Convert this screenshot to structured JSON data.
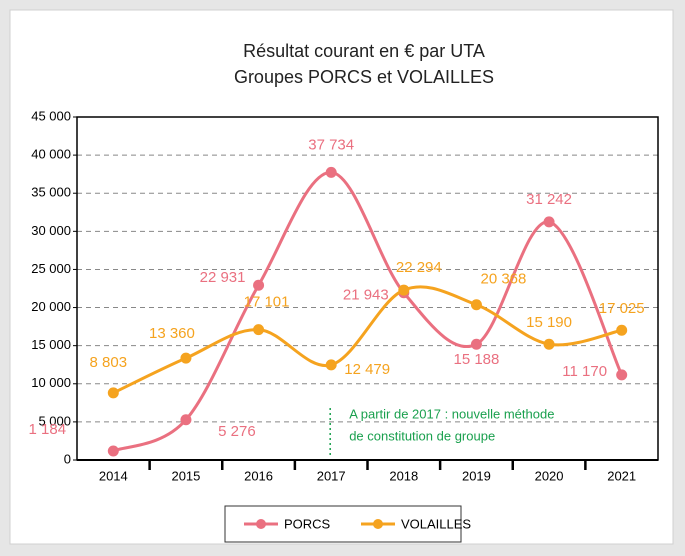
{
  "chart_data": {
    "type": "line",
    "title": "Résultat courant en € par UTA",
    "subtitle": "Groupes PORCS et VOLAILLES",
    "categories": [
      "2014",
      "2015",
      "2016",
      "2017",
      "2018",
      "2019",
      "2020",
      "2021"
    ],
    "series": [
      {
        "name": "PORCS",
        "color": "#ea7080",
        "values": [
          1184,
          5276,
          22931,
          37734,
          21943,
          15188,
          31242,
          11170
        ],
        "value_labels": [
          "1 184",
          "5 276",
          "22 931",
          "37 734",
          "21 943",
          "15 188",
          "31 242",
          "11 170"
        ]
      },
      {
        "name": "VOLAILLES",
        "color": "#f5a31f",
        "values": [
          8803,
          13360,
          17101,
          12479,
          22294,
          20368,
          15190,
          17025
        ],
        "value_labels": [
          "8 803",
          "13 360",
          "17 101",
          "12 479",
          "22 294",
          "20 368",
          "15 190",
          "17 025"
        ]
      }
    ],
    "ylim": [
      0,
      45000
    ],
    "yticks": [
      0,
      {
        "value": 5000,
        "label": "5 000"
      },
      {
        "value": 10000,
        "label": "10 000"
      },
      {
        "value": 15000,
        "label": "15 000"
      },
      {
        "value": 20000,
        "label": "20 000"
      },
      {
        "value": 25000,
        "label": "25 000"
      },
      {
        "value": 30000,
        "label": "30 000"
      },
      {
        "value": 35000,
        "label": "35 000"
      },
      {
        "value": 40000,
        "label": "40 000"
      },
      {
        "value": 45000,
        "label": "45 000"
      }
    ],
    "grid": true,
    "legend": "bottom",
    "annotation": [
      "A partir de 2017 : nouvelle méthode",
      "de constitution de groupe"
    ],
    "annotation_color": "#1aa04e"
  }
}
